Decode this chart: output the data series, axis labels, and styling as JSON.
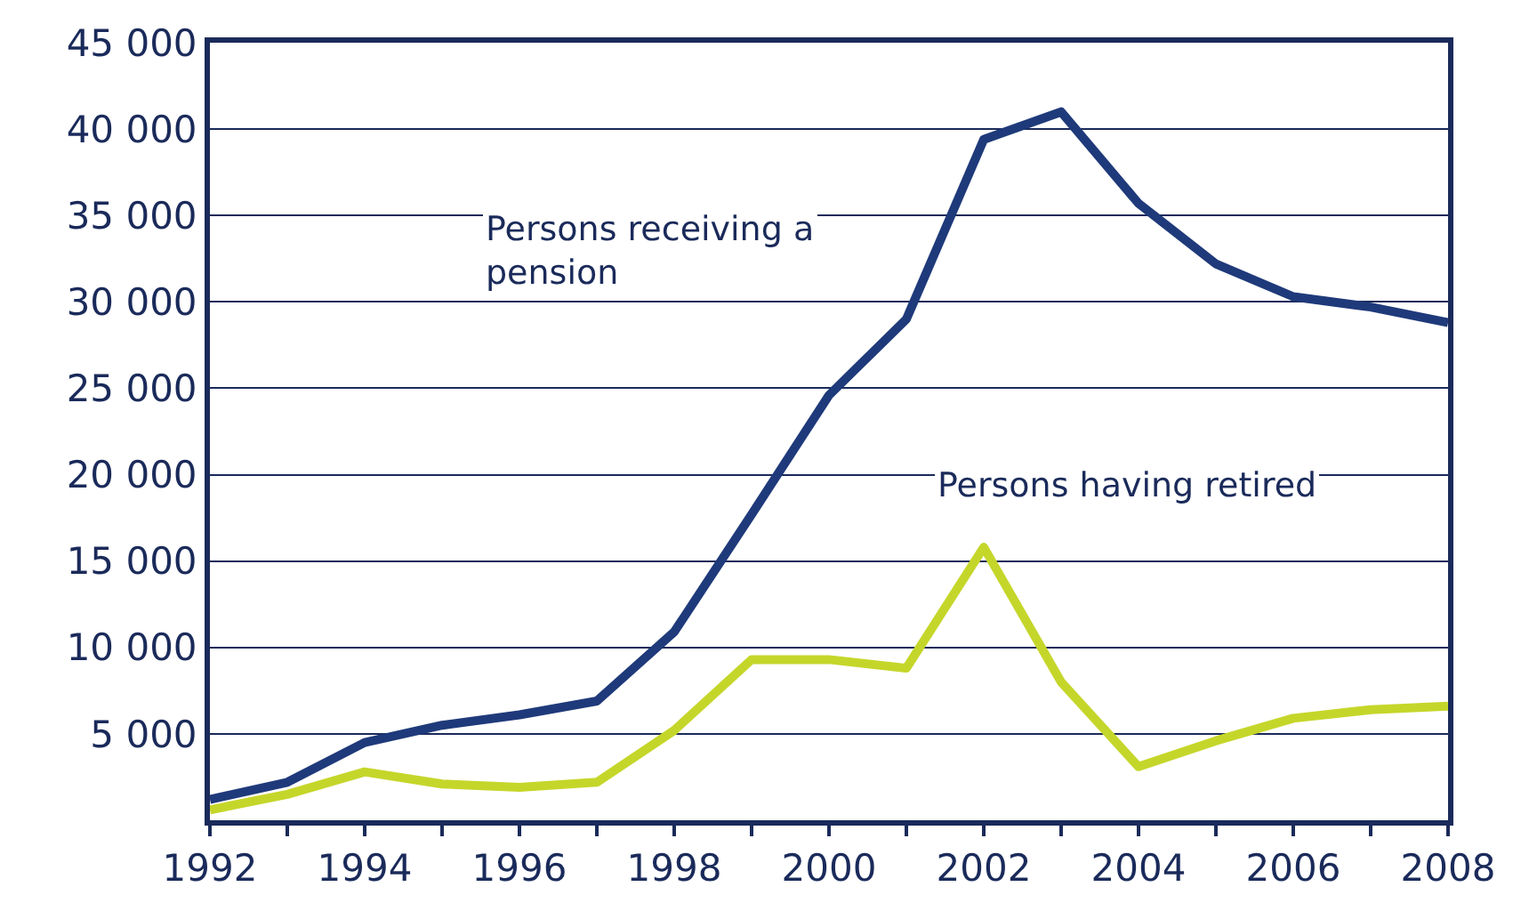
{
  "chart_data": {
    "type": "line",
    "x": [
      1992,
      1993,
      1994,
      1995,
      1996,
      1997,
      1998,
      1999,
      2000,
      2001,
      2002,
      2003,
      2004,
      2005,
      2006,
      2007,
      2008
    ],
    "series": [
      {
        "name": "Persons receiving a pension",
        "color": "#1f3a7a",
        "values": [
          1200,
          2200,
          4500,
          5500,
          6100,
          6900,
          10900,
          17700,
          24600,
          29000,
          39400,
          41000,
          35700,
          32200,
          30300,
          29700,
          28800
        ]
      },
      {
        "name": "Persons having retired",
        "color": "#c5d62a",
        "values": [
          600,
          1500,
          2800,
          2100,
          1900,
          2200,
          5200,
          9300,
          9300,
          8800,
          15800,
          8000,
          3100,
          4600,
          5900,
          6400,
          6600
        ]
      }
    ],
    "xlim": [
      1992,
      2008
    ],
    "ylim": [
      0,
      45000
    ],
    "xticks": [
      1992,
      {
        "value": 1993,
        "label": null
      },
      1994,
      {
        "value": 1995,
        "label": null
      },
      1996,
      {
        "value": 1997,
        "label": null
      },
      1998,
      {
        "value": 1999,
        "label": null
      },
      2000,
      {
        "value": 2001,
        "label": null
      },
      2002,
      {
        "value": 2003,
        "label": null
      },
      2004,
      {
        "value": 2005,
        "label": null
      },
      2006,
      {
        "value": 2007,
        "label": null
      },
      2008
    ],
    "yticks": [
      {
        "value": 5000,
        "label": "5 000"
      },
      {
        "value": 10000,
        "label": "10 000"
      },
      {
        "value": 15000,
        "label": "15 000"
      },
      {
        "value": 20000,
        "label": "20 000"
      },
      {
        "value": 25000,
        "label": "25 000"
      },
      {
        "value": 30000,
        "label": "30 000"
      },
      {
        "value": 35000,
        "label": "35 000"
      },
      {
        "value": 40000,
        "label": "40 000"
      },
      {
        "value": 45000,
        "label": "45 000"
      }
    ],
    "grid": "y",
    "legend": false,
    "marker": "none",
    "line_style": "solid"
  }
}
